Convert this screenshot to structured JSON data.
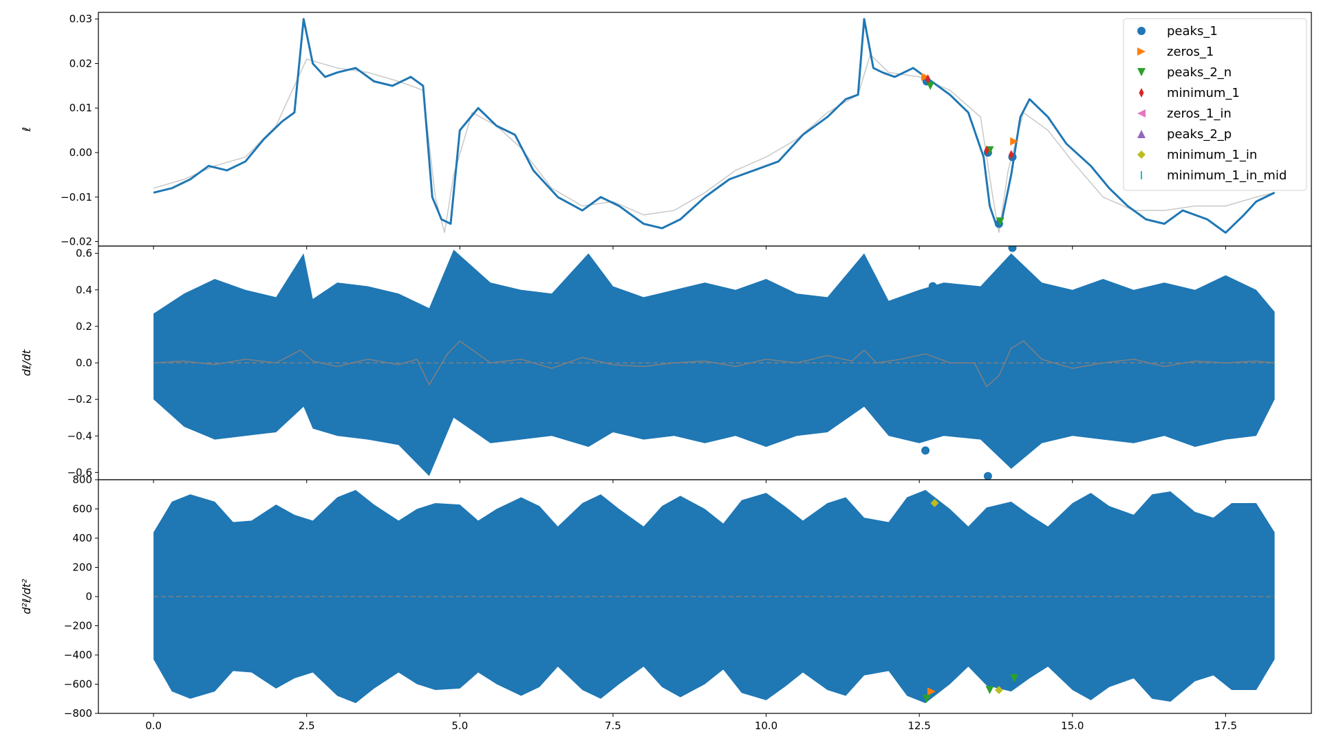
{
  "colors": {
    "main_line": "#1f77b4",
    "smooth_line": "#c8c8c8",
    "deriv_smooth": "#808080",
    "dashed_zero": "#808080",
    "axis": "#000000"
  },
  "chart_data": [
    {
      "type": "line",
      "ylabel": "ℓ",
      "ylim": [
        -0.021,
        0.0315
      ],
      "yticks": [
        -0.02,
        -0.01,
        0.0,
        0.01,
        0.02,
        0.03
      ],
      "ytick_labels": [
        "−0.02",
        "−0.01",
        "0.00",
        "0.01",
        "0.02",
        "0.03"
      ],
      "xlim": [
        -0.9,
        18.9
      ],
      "x_tick_labels_shown": false,
      "series": [
        {
          "role": "signal",
          "x": [
            0.0,
            0.3,
            0.6,
            0.9,
            1.2,
            1.5,
            1.8,
            2.1,
            2.3,
            2.45,
            2.6,
            2.8,
            3.0,
            3.3,
            3.6,
            3.9,
            4.2,
            4.4,
            4.55,
            4.7,
            4.85,
            5.0,
            5.3,
            5.6,
            5.9,
            6.2,
            6.6,
            7.0,
            7.3,
            7.6,
            8.0,
            8.3,
            8.6,
            9.0,
            9.4,
            9.8,
            10.2,
            10.6,
            11.0,
            11.3,
            11.5,
            11.6,
            11.75,
            11.9,
            12.1,
            12.4,
            12.7,
            13.0,
            13.3,
            13.55,
            13.65,
            13.75,
            13.85,
            14.0,
            14.15,
            14.3,
            14.6,
            14.9,
            15.3,
            15.6,
            15.9,
            16.2,
            16.5,
            16.8,
            17.2,
            17.5,
            17.8,
            18.0,
            18.3
          ],
          "y": [
            -0.009,
            -0.008,
            -0.006,
            -0.003,
            -0.004,
            -0.002,
            0.003,
            0.007,
            0.009,
            0.03,
            0.02,
            0.017,
            0.018,
            0.019,
            0.016,
            0.015,
            0.017,
            0.015,
            -0.01,
            -0.015,
            -0.016,
            0.005,
            0.01,
            0.006,
            0.004,
            -0.004,
            -0.01,
            -0.013,
            -0.01,
            -0.012,
            -0.016,
            -0.017,
            -0.015,
            -0.01,
            -0.006,
            -0.004,
            -0.002,
            0.004,
            0.008,
            0.012,
            0.013,
            0.03,
            0.019,
            0.018,
            0.017,
            0.019,
            0.016,
            0.013,
            0.009,
            -0.001,
            -0.012,
            -0.016,
            -0.015,
            -0.005,
            0.008,
            0.012,
            0.008,
            0.002,
            -0.003,
            -0.008,
            -0.012,
            -0.015,
            -0.016,
            -0.013,
            -0.015,
            -0.018,
            -0.014,
            -0.011,
            -0.009
          ]
        },
        {
          "role": "smooth",
          "x": [
            0.0,
            0.5,
            1.0,
            1.5,
            2.0,
            2.5,
            3.0,
            3.5,
            4.0,
            4.4,
            4.6,
            4.75,
            4.9,
            5.2,
            5.6,
            6.0,
            6.5,
            7.0,
            7.5,
            8.0,
            8.5,
            9.0,
            9.5,
            10.0,
            10.5,
            11.0,
            11.5,
            11.7,
            12.0,
            12.5,
            13.0,
            13.5,
            13.7,
            13.8,
            13.95,
            14.2,
            14.6,
            15.0,
            15.5,
            16.0,
            16.5,
            17.0,
            17.5,
            18.0,
            18.3
          ],
          "y": [
            -0.008,
            -0.006,
            -0.003,
            -0.001,
            0.006,
            0.021,
            0.019,
            0.018,
            0.016,
            0.014,
            -0.01,
            -0.018,
            -0.005,
            0.009,
            0.006,
            0.001,
            -0.008,
            -0.012,
            -0.011,
            -0.014,
            -0.013,
            -0.009,
            -0.004,
            -0.001,
            0.003,
            0.009,
            0.013,
            0.022,
            0.018,
            0.017,
            0.014,
            0.008,
            -0.01,
            -0.018,
            -0.004,
            0.009,
            0.005,
            -0.002,
            -0.01,
            -0.013,
            -0.013,
            -0.012,
            -0.012,
            -0.01,
            -0.009
          ]
        }
      ],
      "legend": {
        "placement": "upper right",
        "entries": [
          {
            "label": "peaks_1",
            "marker": "circle",
            "color": "#1f77b4"
          },
          {
            "label": "zeros_1",
            "marker": "triangle-right",
            "color": "#ff7f0e"
          },
          {
            "label": "peaks_2_n",
            "marker": "triangle-down",
            "color": "#2ca02c"
          },
          {
            "label": "minimum_1",
            "marker": "thin-diamond",
            "color": "#d62728"
          },
          {
            "label": "zeros_1_in",
            "marker": "triangle-left",
            "color": "#e377c2"
          },
          {
            "label": "peaks_2_p",
            "marker": "triangle-up",
            "color": "#9467bd"
          },
          {
            "label": "minimum_1_in",
            "marker": "diamond",
            "color": "#bcbd22"
          },
          {
            "label": "minimum_1_in_mid",
            "marker": "vline",
            "color": "#17becf"
          }
        ]
      },
      "markers": [
        {
          "series": "peaks_1",
          "points": [
            [
              12.62,
              0.016
            ],
            [
              13.62,
              0.0
            ],
            [
              13.8,
              -0.016
            ],
            [
              14.02,
              -0.001
            ]
          ]
        },
        {
          "series": "zeros_1",
          "points": [
            [
              12.6,
              0.017
            ],
            [
              14.05,
              0.0025
            ]
          ]
        },
        {
          "series": "peaks_2_n",
          "points": [
            [
              12.68,
              0.015
            ],
            [
              13.65,
              0.0005
            ],
            [
              13.82,
              -0.0155
            ]
          ]
        },
        {
          "series": "minimum_1",
          "points": [
            [
              12.64,
              0.0165
            ],
            [
              13.6,
              0.0005
            ],
            [
              14.0,
              -0.0005
            ]
          ]
        }
      ]
    },
    {
      "type": "line",
      "ylabel": "dℓ/dt",
      "ylim": [
        -0.64,
        0.64
      ],
      "yticks": [
        -0.6,
        -0.4,
        -0.2,
        0.0,
        0.2,
        0.4,
        0.6
      ],
      "ytick_labels": [
        "−0.6",
        "−0.4",
        "−0.2",
        "0.0",
        "0.2",
        "0.4",
        "0.6"
      ],
      "xlim": [
        -0.9,
        18.9
      ],
      "x_tick_labels_shown": false,
      "series": [
        {
          "role": "envelope",
          "x": [
            0.0,
            0.5,
            1.0,
            1.5,
            2.0,
            2.45,
            2.6,
            3.0,
            3.5,
            4.0,
            4.5,
            4.9,
            5.5,
            6.0,
            6.5,
            7.1,
            7.5,
            8.0,
            8.5,
            9.0,
            9.5,
            10.0,
            10.5,
            11.0,
            11.6,
            12.0,
            12.5,
            12.9,
            13.5,
            14.0,
            14.5,
            15.0,
            15.5,
            16.0,
            16.5,
            17.0,
            17.5,
            18.0,
            18.3
          ],
          "upper": [
            0.27,
            0.38,
            0.46,
            0.4,
            0.36,
            0.6,
            0.35,
            0.44,
            0.42,
            0.38,
            0.3,
            0.62,
            0.44,
            0.4,
            0.38,
            0.6,
            0.42,
            0.36,
            0.4,
            0.44,
            0.4,
            0.46,
            0.38,
            0.36,
            0.6,
            0.34,
            0.4,
            0.44,
            0.42,
            0.6,
            0.44,
            0.4,
            0.46,
            0.4,
            0.44,
            0.4,
            0.48,
            0.4,
            0.28
          ],
          "lower": [
            -0.2,
            -0.35,
            -0.42,
            -0.4,
            -0.38,
            -0.24,
            -0.36,
            -0.4,
            -0.42,
            -0.45,
            -0.62,
            -0.3,
            -0.44,
            -0.42,
            -0.4,
            -0.46,
            -0.38,
            -0.42,
            -0.4,
            -0.44,
            -0.4,
            -0.46,
            -0.4,
            -0.38,
            -0.24,
            -0.4,
            -0.44,
            -0.4,
            -0.42,
            -0.58,
            -0.44,
            -0.4,
            -0.42,
            -0.44,
            -0.4,
            -0.46,
            -0.42,
            -0.4,
            -0.2
          ]
        },
        {
          "role": "smooth",
          "x": [
            0.0,
            0.5,
            1.0,
            1.5,
            2.0,
            2.4,
            2.6,
            3.0,
            3.5,
            4.0,
            4.3,
            4.5,
            4.8,
            5.0,
            5.5,
            6.0,
            6.5,
            7.0,
            7.5,
            8.0,
            8.5,
            9.0,
            9.5,
            10.0,
            10.5,
            11.0,
            11.4,
            11.6,
            11.8,
            12.2,
            12.6,
            13.0,
            13.4,
            13.6,
            13.8,
            14.0,
            14.2,
            14.5,
            15.0,
            15.5,
            16.0,
            16.5,
            17.0,
            17.5,
            18.0,
            18.3
          ],
          "y": [
            0.0,
            0.01,
            -0.01,
            0.02,
            0.0,
            0.07,
            0.01,
            -0.02,
            0.02,
            -0.01,
            0.02,
            -0.12,
            0.05,
            0.12,
            0.0,
            0.02,
            -0.03,
            0.03,
            -0.01,
            -0.02,
            0.0,
            0.01,
            -0.02,
            0.02,
            0.0,
            0.04,
            0.01,
            0.07,
            0.0,
            0.02,
            0.05,
            0.0,
            0.0,
            -0.13,
            -0.07,
            0.08,
            0.12,
            0.02,
            -0.03,
            0.0,
            0.02,
            -0.02,
            0.01,
            0.0,
            0.01,
            0.0
          ]
        }
      ],
      "markers": [
        {
          "series": "peaks_1",
          "points": [
            [
              12.6,
              -0.48
            ],
            [
              12.72,
              0.42
            ],
            [
              13.62,
              -0.62
            ],
            [
              14.02,
              0.63
            ]
          ]
        }
      ],
      "zero_line": true
    },
    {
      "type": "line",
      "ylabel": "d²ℓ/dt²",
      "ylim": [
        -800,
        800
      ],
      "yticks": [
        -800,
        -600,
        -400,
        -200,
        0,
        200,
        400,
        600,
        800
      ],
      "ytick_labels": [
        "−800",
        "−600",
        "−400",
        "−200",
        "0",
        "200",
        "400",
        "600",
        "800"
      ],
      "xlim": [
        -0.9,
        18.9
      ],
      "xticks": [
        0.0,
        2.5,
        5.0,
        7.5,
        10.0,
        12.5,
        15.0,
        17.5
      ],
      "xtick_labels": [
        "0.0",
        "2.5",
        "5.0",
        "7.5",
        "10.0",
        "12.5",
        "15.0",
        "17.5"
      ],
      "series": [
        {
          "role": "envelope",
          "x": [
            0.0,
            0.3,
            0.6,
            1.0,
            1.3,
            1.6,
            2.0,
            2.3,
            2.6,
            3.0,
            3.3,
            3.6,
            4.0,
            4.3,
            4.6,
            5.0,
            5.3,
            5.6,
            6.0,
            6.3,
            6.6,
            7.0,
            7.3,
            7.6,
            8.0,
            8.3,
            8.6,
            9.0,
            9.3,
            9.6,
            10.0,
            10.3,
            10.6,
            11.0,
            11.3,
            11.6,
            12.0,
            12.3,
            12.6,
            13.0,
            13.3,
            13.6,
            14.0,
            14.3,
            14.6,
            15.0,
            15.3,
            15.6,
            16.0,
            16.3,
            16.6,
            17.0,
            17.3,
            17.6,
            18.0,
            18.3
          ],
          "upper": [
            440,
            650,
            700,
            650,
            510,
            520,
            630,
            560,
            520,
            680,
            730,
            630,
            520,
            600,
            640,
            630,
            520,
            600,
            680,
            620,
            480,
            640,
            700,
            600,
            480,
            620,
            690,
            600,
            500,
            660,
            710,
            620,
            520,
            640,
            680,
            540,
            510,
            680,
            730,
            600,
            480,
            610,
            650,
            560,
            480,
            640,
            710,
            620,
            560,
            700,
            720,
            580,
            540,
            640,
            640,
            440
          ],
          "lower": [
            -430,
            -650,
            -700,
            -650,
            -510,
            -520,
            -630,
            -560,
            -520,
            -680,
            -730,
            -630,
            -520,
            -600,
            -640,
            -630,
            -520,
            -600,
            -680,
            -620,
            -480,
            -640,
            -700,
            -600,
            -480,
            -620,
            -690,
            -600,
            -500,
            -660,
            -710,
            -620,
            -520,
            -640,
            -680,
            -540,
            -510,
            -680,
            -730,
            -600,
            -480,
            -610,
            -650,
            -560,
            -480,
            -640,
            -710,
            -620,
            -560,
            -700,
            -720,
            -580,
            -540,
            -640,
            -640,
            -430
          ]
        }
      ],
      "markers": [
        {
          "series": "zeros_1",
          "points": [
            [
              12.7,
              -650
            ]
          ]
        },
        {
          "series": "peaks_2_n",
          "points": [
            [
              12.62,
              -700
            ],
            [
              13.65,
              -640
            ],
            [
              14.05,
              -560
            ]
          ]
        },
        {
          "series": "minimum_1_in",
          "points": [
            [
              12.75,
              640
            ],
            [
              13.8,
              -640
            ]
          ]
        }
      ],
      "zero_line": true
    }
  ]
}
